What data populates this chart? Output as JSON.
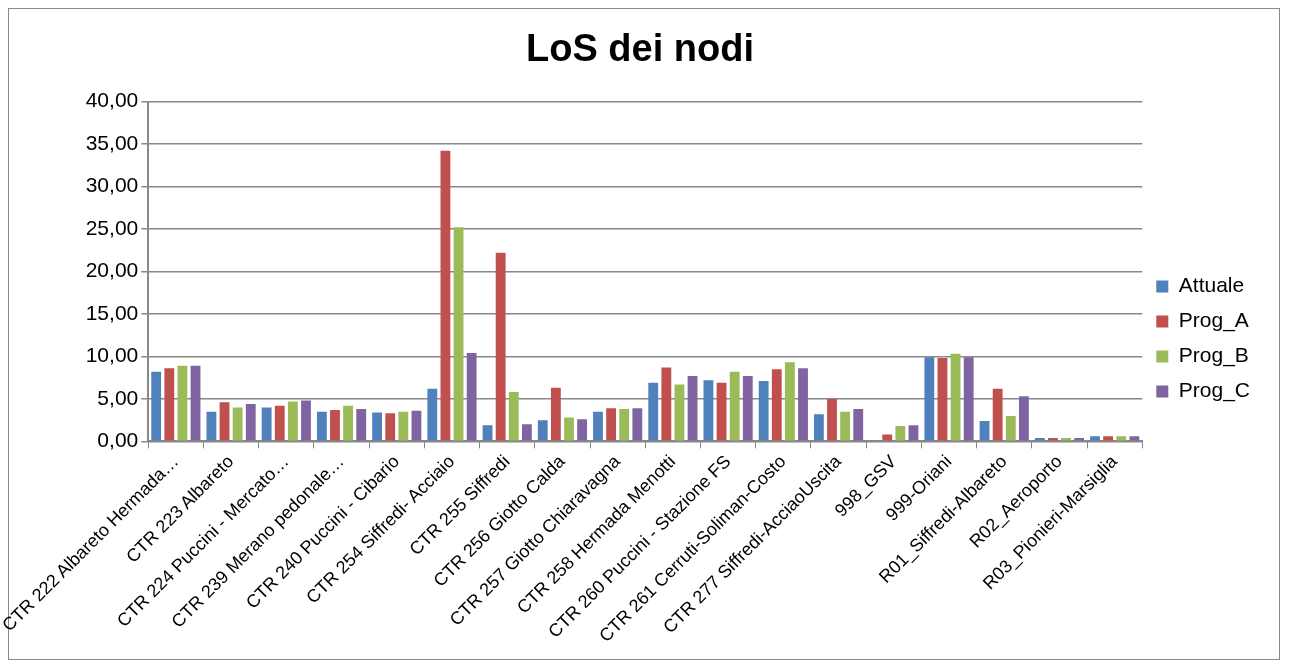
{
  "chart_data": {
    "type": "bar",
    "title": "LoS dei nodi",
    "categories": [
      "CTR 222 Albareto Hermada…",
      "CTR 223 Albareto",
      "CTR 224 Puccini - Mercato…",
      "CTR 239 Merano pedonale…",
      "CTR 240 Puccini - Cibario",
      "CTR 254 Siffredi- Acciaio",
      "CTR 255 Siffredi",
      "CTR 256 Giotto Calda",
      "CTR 257 Giotto Chiaravagna",
      "CTR 258 Hermada Menotti",
      "CTR 260 Puccini - Stazione FS",
      "CTR 261 Cerruti-Soliman-Costo",
      "CTR 277 Siffredi-AcciaoUscita",
      "998_GSV",
      "999-Oriani",
      "R01_Siffredi-Albareto",
      "R02_Aeroporto",
      "R03_Pionieri-Marsiglia"
    ],
    "series": [
      {
        "name": "Attuale",
        "color": "#4f81bd",
        "values": [
          8.2,
          3.5,
          4.0,
          3.5,
          3.4,
          6.2,
          1.9,
          2.5,
          3.5,
          6.9,
          7.2,
          7.1,
          3.2,
          0.1,
          9.9,
          2.4,
          0.4,
          0.6
        ]
      },
      {
        "name": "Prog_A",
        "color": "#c0504d",
        "values": [
          8.6,
          4.6,
          4.2,
          3.7,
          3.3,
          34.2,
          22.2,
          6.3,
          3.9,
          8.7,
          6.9,
          8.5,
          5.0,
          0.8,
          9.8,
          6.2,
          0.4,
          0.6
        ]
      },
      {
        "name": "Prog_B",
        "color": "#9bbb59",
        "values": [
          8.9,
          4.0,
          4.7,
          4.2,
          3.5,
          25.2,
          5.8,
          2.8,
          3.8,
          6.7,
          8.2,
          9.3,
          3.5,
          1.8,
          10.3,
          3.0,
          0.4,
          0.6
        ]
      },
      {
        "name": "Prog_C",
        "color": "#8064a2",
        "values": [
          8.9,
          4.4,
          4.8,
          3.8,
          3.6,
          10.4,
          2.0,
          2.6,
          3.9,
          7.7,
          7.7,
          8.6,
          3.8,
          1.9,
          9.9,
          5.3,
          0.4,
          0.6
        ]
      }
    ],
    "ylim": [
      0,
      40
    ],
    "yticks": [
      {
        "value": 0,
        "label": "0,00"
      },
      {
        "value": 5,
        "label": "5,00"
      },
      {
        "value": 10,
        "label": "10,00"
      },
      {
        "value": 15,
        "label": "15,00"
      },
      {
        "value": 20,
        "label": "20,00"
      },
      {
        "value": 25,
        "label": "25,00"
      },
      {
        "value": 30,
        "label": "30,00"
      },
      {
        "value": 35,
        "label": "35,00"
      },
      {
        "value": 40,
        "label": "40,00"
      }
    ],
    "grid": "y",
    "legend": "right"
  }
}
